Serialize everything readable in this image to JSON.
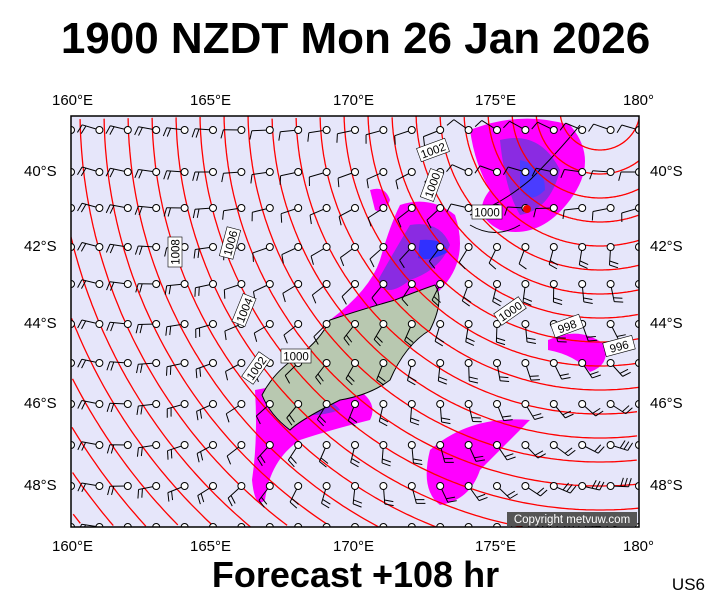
{
  "title": "1900 NZDT Mon 26 Jan 2026",
  "footer": "Forecast +108 hr",
  "product_code": "US6",
  "copyright": "Copyright metvuw.com",
  "lon_labels_top": [
    "160°E",
    "165°E",
    "170°E",
    "175°E",
    "180°"
  ],
  "lon_labels_bottom": [
    "160°E",
    "165°E",
    "170°E",
    "175°E",
    "180°"
  ],
  "lat_labels_left": [
    "40°S",
    "42°S",
    "44°S",
    "46°S",
    "48°S"
  ],
  "lat_labels_right": [
    "40°S",
    "42°S",
    "44°S",
    "46°S",
    "48°S"
  ],
  "isobar_labels": [
    "1008",
    "1006",
    "1004",
    "1002",
    "1000",
    "1002",
    "1000",
    "1000",
    "1000",
    "998",
    "996"
  ],
  "colors": {
    "ocean": "#e6e6fa",
    "isobar": "#ff0000",
    "rain_light": "#ff00ff",
    "rain_mid": "#8a2be2",
    "rain_heavy": "#3030ff",
    "land": "#b8c8b0"
  },
  "icons": {
    "wind": "wind-barb-icon",
    "station": "station-circle-icon"
  }
}
